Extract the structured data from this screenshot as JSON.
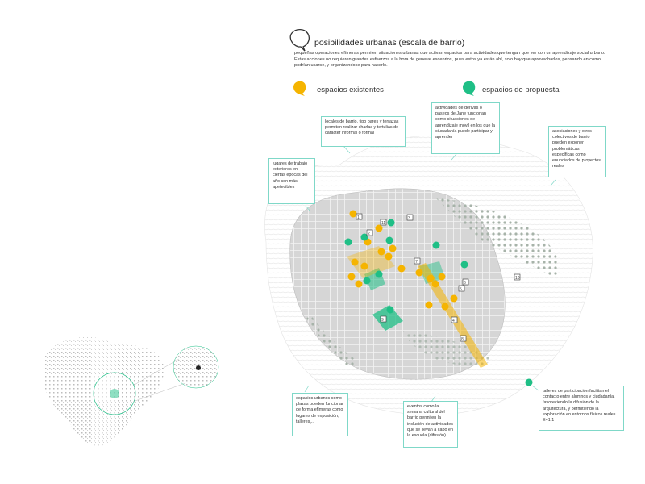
{
  "header": {
    "title": "posibilidades urbanas (escala de barrio)",
    "body": "pequeñas operaciones efímeras permiten situaciones urbanas que activan espacios para actividades que tengan que ver con un aprendizaje social urbano. Estas acciones no requieren grandes esfuerzos a la hora de generar escenrios, pues estos ya están ahí, solo hay que aprovecharlos, pensando en como podrían usarse, y organizandose para hacerlo."
  },
  "legend": {
    "existing": {
      "label": "espacios existentes",
      "color": "#f5b400"
    },
    "proposed": {
      "label": "espacios de propuesta",
      "color": "#1fbf86"
    }
  },
  "callouts": [
    {
      "id": "bars",
      "text": "locales de barrio, tipo bares y terrazas permiten realizar charlas y tertulias de carácter informal o formal"
    },
    {
      "id": "derivas",
      "text": "actividades de derivas o paseos de Jane funcionan como situaciones de aprendizaje móvil en los que la ciudadanía puede participar y aprender"
    },
    {
      "id": "asociaciones",
      "text": "asociaciones y otros colectivos de barrio pueden exponer problemáticas específicas como enunciados de proyectos reales"
    },
    {
      "id": "trabajo",
      "text": "lugares de trabajo exteriores en ciertas épocas del año son más apetecibles"
    },
    {
      "id": "plazas",
      "text": "espacios urbanos como plazas pueden funcionar de forma efímeras como lugares de exposición, talleres,..."
    },
    {
      "id": "eventos",
      "text": "eventos como la semana cultural del barrio permiten la inclusión de actividades que se llevan a cabo en la escuela (difusión)"
    },
    {
      "id": "talleres",
      "text": "talleres de participación facilitan el contacto entre alumnos y ciudadanía, favoreciendo la difusión de la arquitectura, y permitiendo la exploración en entornos físicos reales E=1:1"
    }
  ],
  "map_labels": [
    "1",
    "2",
    "3",
    "4",
    "5",
    "6",
    "7",
    "8",
    "9",
    "10",
    "11",
    "12",
    "13",
    "14",
    "15",
    "16",
    "17",
    "18",
    "19",
    "20",
    "21"
  ],
  "colors": {
    "teal": "#1fbf86",
    "yellow": "#f5b400",
    "callout_border": "#7fd8c8",
    "block": "#cfcfcf",
    "tree": "#9aa89c"
  }
}
